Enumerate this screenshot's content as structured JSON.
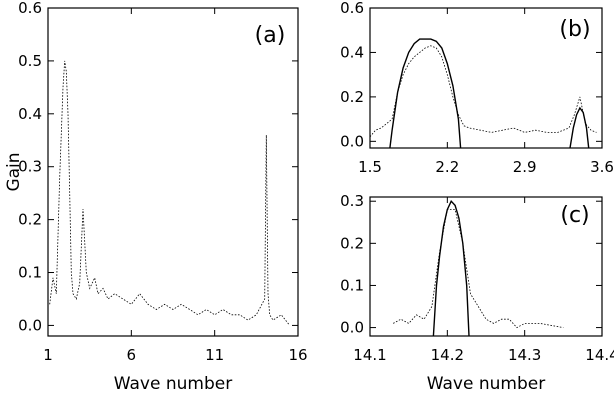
{
  "chart_data": [
    {
      "id": "a",
      "type": "line",
      "panel_label": "(a)",
      "xlabel": "Wave number",
      "ylabel": "Gain",
      "xlim": [
        1,
        16
      ],
      "ylim": [
        -0.02,
        0.6
      ],
      "xticks": [
        1,
        6,
        11,
        16
      ],
      "xtick_labels": [
        "1",
        "6",
        "11",
        "16"
      ],
      "yticks": [
        0.0,
        0.1,
        0.2,
        0.3,
        0.4,
        0.5,
        0.6
      ],
      "ytick_labels": [
        "0.0",
        "0.1",
        "0.2",
        "0.3",
        "0.4",
        "0.5",
        "0.6"
      ],
      "series": [
        {
          "style": "dotted",
          "x": [
            1.1,
            1.3,
            1.5,
            1.7,
            1.9,
            2.0,
            2.1,
            2.2,
            2.3,
            2.4,
            2.5,
            2.7,
            2.9,
            3.1,
            3.3,
            3.5,
            3.8,
            4.0,
            4.3,
            4.6,
            5.0,
            5.5,
            6.0,
            6.5,
            7.0,
            7.5,
            8.0,
            8.5,
            9.0,
            9.5,
            10.0,
            10.5,
            11.0,
            11.5,
            12.0,
            12.5,
            13.0,
            13.5,
            14.0,
            14.1,
            14.2,
            14.3,
            14.5,
            15.0,
            15.5
          ],
          "y": [
            0.04,
            0.09,
            0.06,
            0.28,
            0.45,
            0.5,
            0.48,
            0.4,
            0.25,
            0.1,
            0.06,
            0.05,
            0.08,
            0.22,
            0.1,
            0.07,
            0.09,
            0.06,
            0.07,
            0.05,
            0.06,
            0.05,
            0.04,
            0.06,
            0.04,
            0.03,
            0.04,
            0.03,
            0.04,
            0.03,
            0.02,
            0.03,
            0.02,
            0.03,
            0.02,
            0.02,
            0.01,
            0.02,
            0.05,
            0.36,
            0.06,
            0.02,
            0.01,
            0.02,
            0.0
          ]
        }
      ]
    },
    {
      "id": "b",
      "type": "line",
      "panel_label": "(b)",
      "xlabel": "",
      "ylabel": "",
      "xlim": [
        1.5,
        3.6
      ],
      "ylim": [
        -0.03,
        0.6
      ],
      "xticks": [
        1.5,
        2.2,
        2.9,
        3.6
      ],
      "xtick_labels": [
        "1.5",
        "2.2",
        "2.9",
        "3.6"
      ],
      "yticks": [
        0.0,
        0.2,
        0.4,
        0.6
      ],
      "ytick_labels": [
        "0.0",
        "0.2",
        "0.4",
        "0.6"
      ],
      "series": [
        {
          "style": "solid",
          "x": [
            1.68,
            1.7,
            1.75,
            1.8,
            1.85,
            1.9,
            1.95,
            2.0,
            2.05,
            2.1,
            2.15,
            2.2,
            2.25,
            2.3,
            2.32
          ],
          "y": [
            -0.03,
            0.05,
            0.22,
            0.33,
            0.4,
            0.44,
            0.46,
            0.46,
            0.46,
            0.45,
            0.42,
            0.35,
            0.25,
            0.1,
            -0.03
          ]
        },
        {
          "style": "solid",
          "x": [
            3.31,
            3.34,
            3.37,
            3.4,
            3.43,
            3.46,
            3.48
          ],
          "y": [
            -0.03,
            0.06,
            0.12,
            0.15,
            0.13,
            0.06,
            -0.03
          ]
        },
        {
          "style": "dotted",
          "x": [
            1.5,
            1.55,
            1.6,
            1.65,
            1.7,
            1.75,
            1.8,
            1.85,
            1.9,
            1.95,
            2.0,
            2.05,
            2.1,
            2.15,
            2.2,
            2.25,
            2.3,
            2.35,
            2.4,
            2.5,
            2.6,
            2.7,
            2.8,
            2.9,
            3.0,
            3.1,
            3.2,
            3.3,
            3.35,
            3.4,
            3.45,
            3.5,
            3.55
          ],
          "y": [
            0.02,
            0.05,
            0.06,
            0.08,
            0.1,
            0.22,
            0.3,
            0.35,
            0.38,
            0.4,
            0.42,
            0.43,
            0.42,
            0.38,
            0.3,
            0.2,
            0.12,
            0.07,
            0.06,
            0.05,
            0.04,
            0.05,
            0.06,
            0.04,
            0.05,
            0.04,
            0.04,
            0.06,
            0.12,
            0.2,
            0.08,
            0.05,
            0.04
          ]
        }
      ]
    },
    {
      "id": "c",
      "type": "line",
      "panel_label": "(c)",
      "xlabel": "Wave number",
      "ylabel": "",
      "xlim": [
        14.1,
        14.4
      ],
      "ylim": [
        -0.02,
        0.31
      ],
      "xticks": [
        14.1,
        14.2,
        14.3,
        14.4
      ],
      "xtick_labels": [
        "14.1",
        "14.2",
        "14.3",
        "14.4"
      ],
      "yticks": [
        0.0,
        0.1,
        0.2,
        0.3
      ],
      "ytick_labels": [
        "0.0",
        "0.1",
        "0.2",
        "0.3"
      ],
      "series": [
        {
          "style": "solid",
          "x": [
            14.182,
            14.186,
            14.19,
            14.195,
            14.2,
            14.205,
            14.21,
            14.215,
            14.22,
            14.225,
            14.228
          ],
          "y": [
            -0.02,
            0.1,
            0.17,
            0.24,
            0.28,
            0.3,
            0.29,
            0.26,
            0.2,
            0.1,
            -0.02
          ]
        },
        {
          "style": "dotted",
          "x": [
            14.13,
            14.14,
            14.15,
            14.16,
            14.17,
            14.18,
            14.19,
            14.2,
            14.21,
            14.22,
            14.23,
            14.24,
            14.25,
            14.26,
            14.27,
            14.28,
            14.29,
            14.3,
            14.32,
            14.35
          ],
          "y": [
            0.01,
            0.02,
            0.01,
            0.03,
            0.02,
            0.05,
            0.18,
            0.28,
            0.28,
            0.2,
            0.08,
            0.05,
            0.02,
            0.01,
            0.02,
            0.02,
            0.0,
            0.01,
            0.01,
            0.0
          ]
        }
      ]
    }
  ]
}
